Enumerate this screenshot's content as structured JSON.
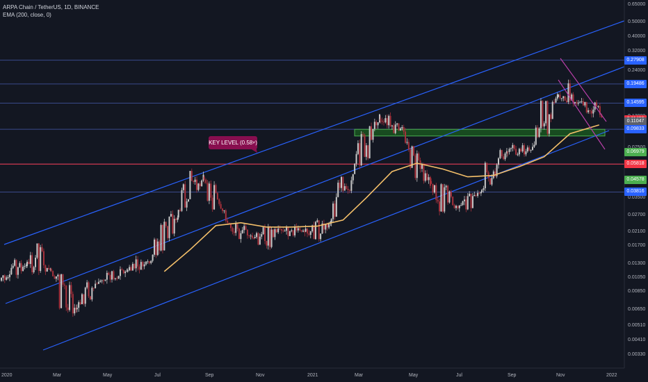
{
  "legend": {
    "symbol_line": "ARPA Chain / TetherUS, 1D, BINANCE",
    "indicator_line": "EMA (200, close, 0)"
  },
  "annotation": {
    "key_level_text": "KEY LEVEL (0.58x)"
  },
  "colors": {
    "background": "#131722",
    "channel": "#2962ff",
    "level_line": "#3a4a8c",
    "key_level_line": "#f23645",
    "ema": "#f5c06a",
    "candle_up": "#c8c8c8",
    "candle_down": "#a8323c",
    "zone_fill": "#1b5e20",
    "zone_border": "#4caf50",
    "wedge": "#b83fa8",
    "tag_blue": "#2962ff",
    "tag_red": "#f23645",
    "tag_green": "#4caf50",
    "tag_gray": "#5d606b",
    "tag_yellow": "#f5c06a"
  },
  "price_axis": {
    "ticks": [
      "0.65000",
      "0.50000",
      "0.40000",
      "0.32000",
      "0.24000",
      "0.19000",
      "0.15000",
      "0.12000",
      "0.09500",
      "0.07500",
      "0.06000",
      "0.04500",
      "0.03500",
      "0.02700",
      "0.02100",
      "0.01700",
      "0.01300",
      "0.01050",
      "0.00850",
      "0.00650",
      "0.00510",
      "0.00410",
      "0.00330"
    ],
    "tags": [
      {
        "text": "0.27908",
        "value": 0.27908,
        "color": "#2962ff"
      },
      {
        "text": "0.19486",
        "value": 0.19486,
        "color": "#2962ff"
      },
      {
        "text": "0.14595",
        "value": 0.14595,
        "color": "#2962ff"
      },
      {
        "text": "0.11432",
        "value": 0.11432,
        "color": "#f23645"
      },
      {
        "text": "0.11047",
        "value": 0.11047,
        "color": "#5d606b"
      },
      {
        "text": "0.09833",
        "value": 0.09833,
        "color": "#2962ff"
      },
      {
        "text": "0.06979",
        "value": 0.06979,
        "color": "#4caf50"
      },
      {
        "text": "0.05818",
        "value": 0.05818,
        "color": "#f23645"
      },
      {
        "text": "0.04578",
        "value": 0.04578,
        "color": "#4caf50"
      },
      {
        "text": "0.03816",
        "value": 0.03816,
        "color": "#2962ff"
      }
    ]
  },
  "time_axis": {
    "ticks": [
      "2020",
      "Mar",
      "May",
      "Jul",
      "Sep",
      "Nov",
      "2021",
      "Mar",
      "May",
      "Jul",
      "Sep",
      "Nov",
      "2022"
    ]
  },
  "chart_data": {
    "type": "candlestick",
    "title": "ARPA Chain / TetherUS, 1D, BINANCE",
    "y_scale": "log",
    "ylim": [
      0.003,
      0.7
    ],
    "xlim": [
      "2020-01-01",
      "2022-01-31"
    ],
    "horizontal_levels": [
      0.27908,
      0.19486,
      0.14595,
      0.09833,
      0.05818,
      0.03816
    ],
    "key_level": {
      "value": 0.05818,
      "label": "KEY LEVEL (0.58x)"
    },
    "support_zone": {
      "low": 0.0889,
      "high": 0.0983
    },
    "ema_200": {
      "dates": [
        "2020-07-15",
        "2020-08-15",
        "2020-09-15",
        "2020-10-15",
        "2020-11-15",
        "2020-12-15",
        "2021-01-15",
        "2021-02-15",
        "2021-03-15",
        "2021-04-15",
        "2021-05-15",
        "2021-06-15",
        "2021-07-15",
        "2021-08-15",
        "2021-09-15",
        "2021-10-15",
        "2021-11-15",
        "2021-12-20"
      ],
      "values": [
        0.0115,
        0.016,
        0.023,
        0.024,
        0.0225,
        0.0225,
        0.0228,
        0.025,
        0.035,
        0.052,
        0.059,
        0.054,
        0.048,
        0.049,
        0.056,
        0.065,
        0.092,
        0.105
      ]
    },
    "ohlc_monthly": [
      {
        "date": "2020-01",
        "open": 0.01,
        "high": 0.015,
        "low": 0.0085,
        "close": 0.0125
      },
      {
        "date": "2020-02",
        "open": 0.0125,
        "high": 0.021,
        "low": 0.01,
        "close": 0.012
      },
      {
        "date": "2020-03",
        "open": 0.012,
        "high": 0.0125,
        "low": 0.0035,
        "close": 0.0065
      },
      {
        "date": "2020-04",
        "open": 0.0065,
        "high": 0.011,
        "low": 0.006,
        "close": 0.01
      },
      {
        "date": "2020-05",
        "open": 0.01,
        "high": 0.013,
        "low": 0.0095,
        "close": 0.0115
      },
      {
        "date": "2020-06",
        "open": 0.0115,
        "high": 0.016,
        "low": 0.011,
        "close": 0.0135
      },
      {
        "date": "2020-07",
        "open": 0.0135,
        "high": 0.042,
        "low": 0.013,
        "close": 0.026
      },
      {
        "date": "2020-08",
        "open": 0.026,
        "high": 0.062,
        "low": 0.025,
        "close": 0.048
      },
      {
        "date": "2020-09",
        "open": 0.048,
        "high": 0.05,
        "low": 0.022,
        "close": 0.024
      },
      {
        "date": "2020-10",
        "open": 0.024,
        "high": 0.025,
        "low": 0.017,
        "close": 0.019
      },
      {
        "date": "2020-11",
        "open": 0.019,
        "high": 0.024,
        "low": 0.013,
        "close": 0.022
      },
      {
        "date": "2020-12",
        "open": 0.022,
        "high": 0.025,
        "low": 0.018,
        "close": 0.021
      },
      {
        "date": "2021-01",
        "open": 0.021,
        "high": 0.028,
        "low": 0.016,
        "close": 0.024
      },
      {
        "date": "2021-02",
        "open": 0.024,
        "high": 0.056,
        "low": 0.023,
        "close": 0.05
      },
      {
        "date": "2021-03",
        "open": 0.05,
        "high": 0.14,
        "low": 0.048,
        "close": 0.115
      },
      {
        "date": "2021-04",
        "open": 0.115,
        "high": 0.15,
        "low": 0.08,
        "close": 0.095
      },
      {
        "date": "2021-05",
        "open": 0.095,
        "high": 0.1,
        "low": 0.027,
        "close": 0.045
      },
      {
        "date": "2021-06",
        "open": 0.045,
        "high": 0.051,
        "low": 0.022,
        "close": 0.03
      },
      {
        "date": "2021-07",
        "open": 0.03,
        "high": 0.04,
        "low": 0.025,
        "close": 0.038
      },
      {
        "date": "2021-08",
        "open": 0.038,
        "high": 0.1,
        "low": 0.037,
        "close": 0.07
      },
      {
        "date": "2021-09",
        "open": 0.07,
        "high": 0.1,
        "low": 0.062,
        "close": 0.072
      },
      {
        "date": "2021-10",
        "open": 0.072,
        "high": 0.2,
        "low": 0.07,
        "close": 0.16
      },
      {
        "date": "2021-11",
        "open": 0.16,
        "high": 0.28,
        "low": 0.13,
        "close": 0.15
      },
      {
        "date": "2021-12",
        "open": 0.15,
        "high": 0.165,
        "low": 0.095,
        "close": 0.1104
      }
    ]
  }
}
